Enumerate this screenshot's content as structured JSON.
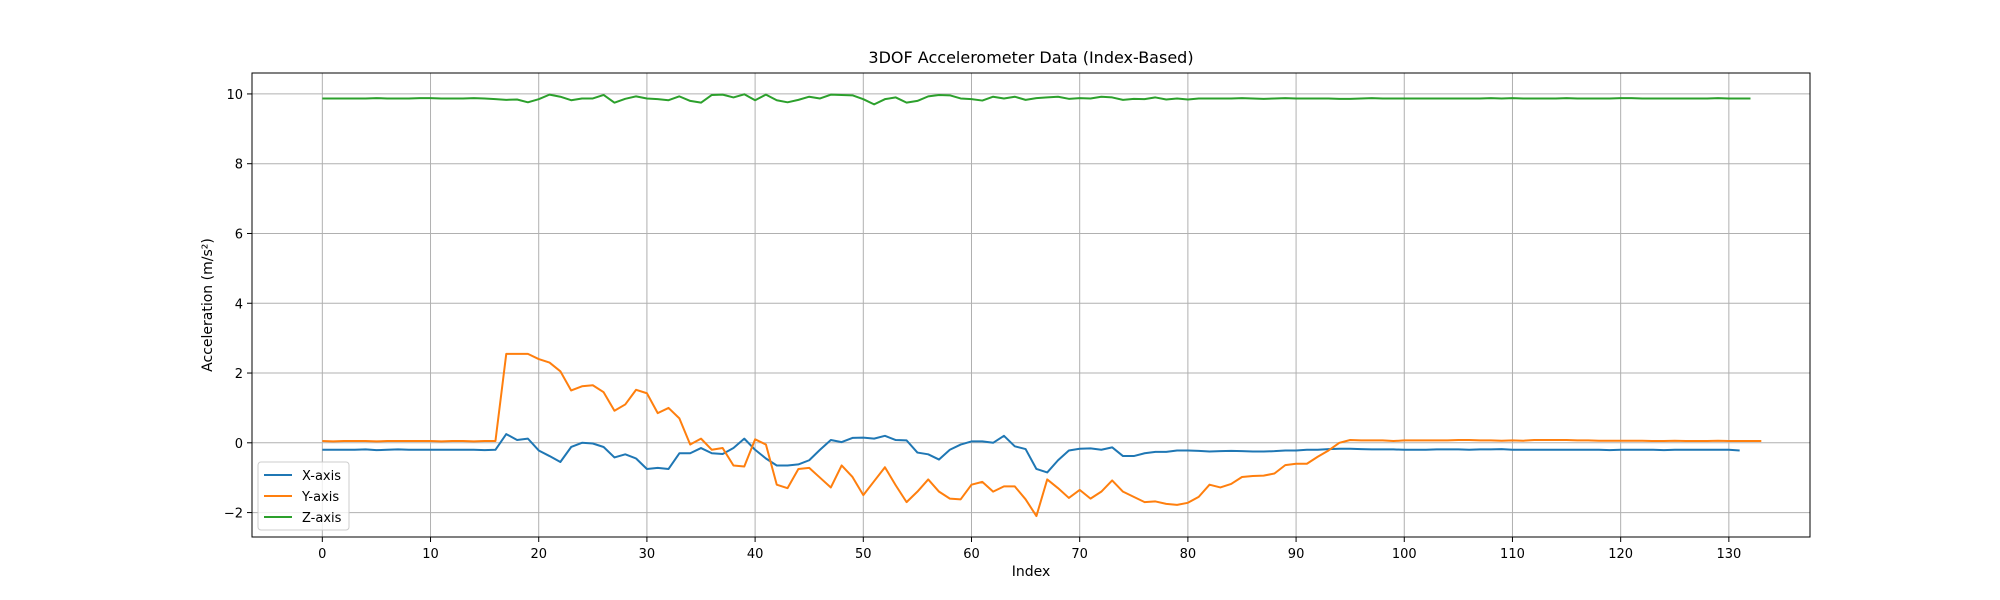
{
  "chart_data": {
    "type": "line",
    "title": "3DOF Accelerometer Data (Index-Based)",
    "xlabel": "Index",
    "ylabel": "Acceleration (m/s²)",
    "xlim": [
      -6.5,
      137.5
    ],
    "ylim": [
      -2.7,
      10.6
    ],
    "xticks": [
      0,
      10,
      20,
      30,
      40,
      50,
      60,
      70,
      80,
      90,
      100,
      110,
      120,
      130
    ],
    "yticks": [
      -2,
      0,
      2,
      4,
      6,
      8,
      10
    ],
    "grid": true,
    "legend_position": "lower-left",
    "series": [
      {
        "name": "X-axis",
        "color": "#1f77b4",
        "values": [
          -0.2,
          -0.2,
          -0.2,
          -0.2,
          -0.19,
          -0.21,
          -0.2,
          -0.19,
          -0.2,
          -0.2,
          -0.2,
          -0.2,
          -0.2,
          -0.2,
          -0.2,
          -0.21,
          -0.2,
          0.25,
          0.08,
          0.12,
          -0.22,
          -0.38,
          -0.55,
          -0.12,
          0.0,
          -0.02,
          -0.12,
          -0.42,
          -0.33,
          -0.45,
          -0.75,
          -0.72,
          -0.75,
          -0.3,
          -0.3,
          -0.15,
          -0.3,
          -0.32,
          -0.15,
          0.12,
          -0.2,
          -0.45,
          -0.65,
          -0.65,
          -0.62,
          -0.5,
          -0.2,
          0.08,
          0.02,
          0.14,
          0.15,
          0.12,
          0.2,
          0.08,
          0.07,
          -0.28,
          -0.33,
          -0.48,
          -0.2,
          -0.05,
          0.04,
          0.04,
          0.0,
          0.2,
          -0.1,
          -0.18,
          -0.75,
          -0.85,
          -0.5,
          -0.22,
          -0.17,
          -0.16,
          -0.2,
          -0.13,
          -0.38,
          -0.38,
          -0.3,
          -0.26,
          -0.26,
          -0.22,
          -0.22,
          -0.23,
          -0.25,
          -0.24,
          -0.23,
          -0.24,
          -0.25,
          -0.25,
          -0.24,
          -0.22,
          -0.22,
          -0.2,
          -0.2,
          -0.18,
          -0.17,
          -0.17,
          -0.18,
          -0.19,
          -0.19,
          -0.19,
          -0.2,
          -0.2,
          -0.2,
          -0.19,
          -0.19,
          -0.19,
          -0.2,
          -0.19,
          -0.19,
          -0.18,
          -0.2,
          -0.2,
          -0.2,
          -0.2,
          -0.2,
          -0.2,
          -0.2,
          -0.2,
          -0.2,
          -0.21,
          -0.2,
          -0.2,
          -0.2,
          -0.2,
          -0.21,
          -0.2,
          -0.2,
          -0.2,
          -0.2,
          -0.2,
          -0.2,
          -0.22
        ]
      },
      {
        "name": "Y-axis",
        "color": "#ff7f0e",
        "values": [
          0.05,
          0.04,
          0.05,
          0.05,
          0.05,
          0.04,
          0.05,
          0.05,
          0.05,
          0.05,
          0.05,
          0.04,
          0.05,
          0.05,
          0.04,
          0.05,
          0.05,
          2.55,
          2.55,
          2.55,
          2.4,
          2.3,
          2.05,
          1.5,
          1.62,
          1.65,
          1.45,
          0.92,
          1.1,
          1.52,
          1.42,
          0.85,
          1.0,
          0.7,
          -0.05,
          0.12,
          -0.2,
          -0.15,
          -0.65,
          -0.68,
          0.1,
          -0.05,
          -1.2,
          -1.3,
          -0.75,
          -0.72,
          -1.0,
          -1.28,
          -0.65,
          -0.98,
          -1.5,
          -1.1,
          -0.7,
          -1.22,
          -1.7,
          -1.4,
          -1.05,
          -1.4,
          -1.6,
          -1.62,
          -1.2,
          -1.12,
          -1.4,
          -1.25,
          -1.25,
          -1.62,
          -2.1,
          -1.05,
          -1.3,
          -1.58,
          -1.35,
          -1.6,
          -1.4,
          -1.08,
          -1.4,
          -1.55,
          -1.7,
          -1.68,
          -1.75,
          -1.78,
          -1.72,
          -1.55,
          -1.2,
          -1.28,
          -1.18,
          -0.98,
          -0.95,
          -0.94,
          -0.88,
          -0.64,
          -0.6,
          -0.6,
          -0.4,
          -0.22,
          0.0,
          0.08,
          0.07,
          0.07,
          0.07,
          0.05,
          0.07,
          0.07,
          0.07,
          0.07,
          0.07,
          0.08,
          0.08,
          0.07,
          0.07,
          0.06,
          0.07,
          0.06,
          0.08,
          0.08,
          0.08,
          0.08,
          0.07,
          0.07,
          0.06,
          0.06,
          0.06,
          0.06,
          0.06,
          0.05,
          0.05,
          0.06,
          0.05,
          0.05,
          0.05,
          0.06,
          0.05,
          0.05,
          0.05,
          0.05
        ]
      },
      {
        "name": "Z-axis",
        "color": "#2ca02c",
        "values": [
          9.87,
          9.87,
          9.87,
          9.87,
          9.87,
          9.88,
          9.87,
          9.87,
          9.87,
          9.88,
          9.88,
          9.87,
          9.87,
          9.87,
          9.88,
          9.87,
          9.85,
          9.83,
          9.84,
          9.76,
          9.85,
          9.98,
          9.92,
          9.82,
          9.87,
          9.87,
          9.97,
          9.75,
          9.86,
          9.93,
          9.87,
          9.85,
          9.82,
          9.93,
          9.8,
          9.75,
          9.97,
          9.98,
          9.9,
          9.99,
          9.82,
          9.98,
          9.82,
          9.76,
          9.83,
          9.92,
          9.87,
          9.98,
          9.97,
          9.96,
          9.85,
          9.7,
          9.85,
          9.9,
          9.75,
          9.8,
          9.93,
          9.97,
          9.96,
          9.87,
          9.85,
          9.81,
          9.92,
          9.87,
          9.92,
          9.83,
          9.88,
          9.9,
          9.92,
          9.86,
          9.88,
          9.87,
          9.92,
          9.9,
          9.83,
          9.86,
          9.85,
          9.9,
          9.84,
          9.87,
          9.84,
          9.87,
          9.87,
          9.87,
          9.87,
          9.88,
          9.87,
          9.86,
          9.87,
          9.88,
          9.87,
          9.87,
          9.87,
          9.87,
          9.86,
          9.86,
          9.87,
          9.88,
          9.87,
          9.87,
          9.87,
          9.87,
          9.87,
          9.87,
          9.87,
          9.87,
          9.87,
          9.87,
          9.88,
          9.87,
          9.88,
          9.87,
          9.87,
          9.87,
          9.87,
          9.88,
          9.87,
          9.87,
          9.87,
          9.87,
          9.88,
          9.88,
          9.87,
          9.87,
          9.87,
          9.87,
          9.87,
          9.87,
          9.87,
          9.88,
          9.87,
          9.87,
          9.87
        ]
      }
    ]
  }
}
